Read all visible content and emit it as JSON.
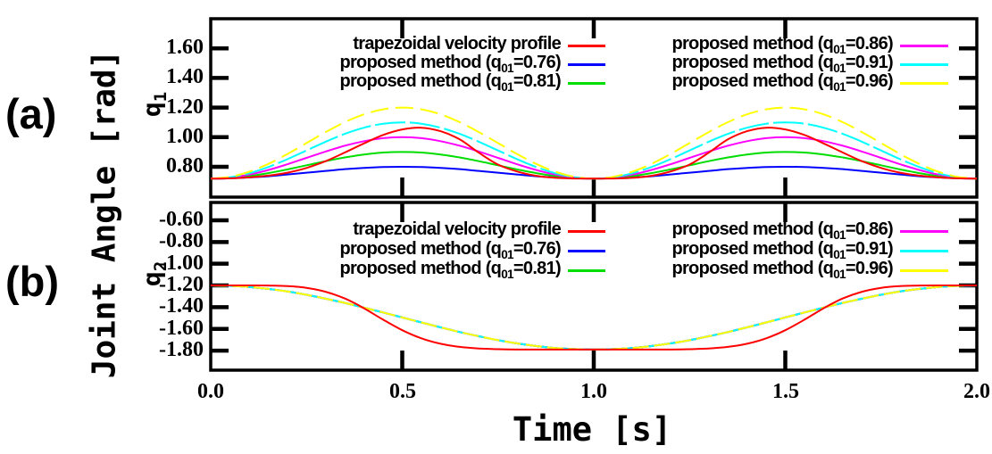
{
  "figure": {
    "panel_a_tag": "(a)",
    "panel_b_tag": "(b)",
    "shared_ylabel": "Joint Angle [rad]",
    "xlabel": "Time [s]",
    "background": "#ffffff",
    "x_axis": {
      "range": [
        0.0,
        2.0
      ],
      "ticks": [
        {
          "v": 0.0,
          "label": "0.0"
        },
        {
          "v": 0.5,
          "label": "0.5"
        },
        {
          "v": 1.0,
          "label": "1.0"
        },
        {
          "v": 1.5,
          "label": "1.5"
        },
        {
          "v": 2.0,
          "label": "2.0"
        }
      ]
    }
  },
  "legend": {
    "position": "top-inside, two columns, repeated in both panels",
    "columns": [
      [
        {
          "label": "trapezoidal velocity profile",
          "color": "#ff0000"
        },
        {
          "label": "proposed method (q_{01}=0.76)",
          "color": "#0000ff"
        },
        {
          "label": "proposed method (q_{01}=0.81)",
          "color": "#00dd00"
        }
      ],
      [
        {
          "label": "proposed method (q_{01}=0.86)",
          "color": "#ff00ff"
        },
        {
          "label": "proposed method (q_{01}=0.91)",
          "color": "#00ffff"
        },
        {
          "label": "proposed method (q_{01}=0.96)",
          "color": "#ffff00"
        }
      ]
    ]
  },
  "chart_data": [
    {
      "type": "line",
      "panel": "a",
      "y_axis_label": "q_{1}",
      "x_range": [
        0.0,
        2.0
      ],
      "y_range": [
        0.595,
        1.8
      ],
      "grid": false,
      "t0": 0.0,
      "dt": 0.05,
      "y_ticks": [
        {
          "v": 1.6,
          "label": "1.60"
        },
        {
          "v": 1.4,
          "label": "1.40"
        },
        {
          "v": 1.2,
          "label": "1.20"
        },
        {
          "v": 1.0,
          "label": "1.00"
        },
        {
          "v": 0.8,
          "label": "0.80"
        }
      ],
      "series": [
        {
          "name": "proposed method (q_{01}=0.76)",
          "q01": 0.76,
          "color": "#0000ff",
          "dash": null,
          "q": [
            0.72,
            0.722,
            0.728,
            0.736,
            0.748,
            0.76,
            0.772,
            0.784,
            0.792,
            0.798,
            0.8,
            0.798,
            0.792,
            0.784,
            0.772,
            0.76,
            0.748,
            0.736,
            0.728,
            0.722,
            0.72,
            0.722,
            0.728,
            0.736,
            0.748,
            0.76,
            0.772,
            0.784,
            0.792,
            0.798,
            0.8,
            0.798,
            0.792,
            0.784,
            0.772,
            0.76,
            0.748,
            0.736,
            0.728,
            0.722,
            0.72
          ]
        },
        {
          "name": "proposed method (q_{01}=0.81)",
          "q01": 0.81,
          "color": "#00dd00",
          "dash": null,
          "q": [
            0.72,
            0.724,
            0.737,
            0.757,
            0.782,
            0.81,
            0.838,
            0.863,
            0.883,
            0.896,
            0.9,
            0.896,
            0.883,
            0.863,
            0.838,
            0.81,
            0.782,
            0.757,
            0.737,
            0.724,
            0.72,
            0.724,
            0.737,
            0.757,
            0.782,
            0.81,
            0.838,
            0.863,
            0.883,
            0.896,
            0.9,
            0.896,
            0.883,
            0.863,
            0.838,
            0.81,
            0.782,
            0.757,
            0.737,
            0.724,
            0.72
          ]
        },
        {
          "name": "proposed method (q_{01}=0.86)",
          "q01": 0.86,
          "color": "#ff00ff",
          "dash": null,
          "q": [
            0.72,
            0.727,
            0.747,
            0.778,
            0.817,
            0.86,
            0.903,
            0.942,
            0.973,
            0.993,
            1.0,
            0.993,
            0.973,
            0.942,
            0.903,
            0.86,
            0.817,
            0.778,
            0.747,
            0.727,
            0.72,
            0.727,
            0.747,
            0.778,
            0.817,
            0.86,
            0.903,
            0.942,
            0.973,
            0.993,
            1.0,
            0.993,
            0.973,
            0.942,
            0.903,
            0.86,
            0.817,
            0.778,
            0.747,
            0.727,
            0.72
          ]
        },
        {
          "name": "proposed method (q_{01}=0.91)",
          "q01": 0.91,
          "color": "#00ffff",
          "dash": [
            34,
            5
          ],
          "q": [
            0.72,
            0.729,
            0.756,
            0.798,
            0.851,
            0.91,
            0.969,
            1.022,
            1.064,
            1.091,
            1.1,
            1.091,
            1.064,
            1.022,
            0.969,
            0.91,
            0.851,
            0.798,
            0.756,
            0.729,
            0.72,
            0.729,
            0.756,
            0.798,
            0.851,
            0.91,
            0.969,
            1.022,
            1.064,
            1.091,
            1.1,
            1.091,
            1.064,
            1.022,
            0.969,
            0.91,
            0.851,
            0.798,
            0.756,
            0.729,
            0.72
          ]
        },
        {
          "name": "proposed method (q_{01}=0.96)",
          "q01": 0.96,
          "color": "#ffff00",
          "dash": [
            20,
            8
          ],
          "q": [
            0.72,
            0.732,
            0.766,
            0.819,
            0.886,
            0.96,
            1.034,
            1.101,
            1.154,
            1.188,
            1.2,
            1.188,
            1.154,
            1.101,
            1.034,
            0.96,
            0.886,
            0.819,
            0.766,
            0.732,
            0.72,
            0.732,
            0.766,
            0.819,
            0.886,
            0.96,
            1.034,
            1.101,
            1.154,
            1.188,
            1.2,
            1.188,
            1.154,
            1.101,
            1.034,
            0.96,
            0.886,
            0.819,
            0.766,
            0.732,
            0.72
          ]
        },
        {
          "name": "trapezoidal velocity profile",
          "color": "#ff0000",
          "dash": null,
          "q": [
            0.72,
            0.722,
            0.728,
            0.74,
            0.76,
            0.792,
            0.838,
            0.896,
            0.958,
            1.015,
            1.052,
            1.064,
            1.04,
            0.985,
            0.895,
            0.815,
            0.768,
            0.739,
            0.725,
            0.721,
            0.72,
            0.721,
            0.725,
            0.739,
            0.768,
            0.815,
            0.895,
            0.985,
            1.04,
            1.064,
            1.052,
            1.015,
            0.958,
            0.896,
            0.838,
            0.792,
            0.76,
            0.74,
            0.728,
            0.722,
            0.72
          ]
        }
      ]
    },
    {
      "type": "line",
      "panel": "b",
      "y_axis_label": "q_{2}",
      "x_range": [
        0.0,
        2.0
      ],
      "y_range": [
        -1.98,
        -0.436
      ],
      "grid": false,
      "t0": 0.0,
      "dt": 0.05,
      "note": "all five proposed-method trajectories coincide in this panel",
      "shared_q": [
        -1.2,
        -1.204,
        -1.214,
        -1.232,
        -1.256,
        -1.286,
        -1.322,
        -1.361,
        -1.404,
        -1.449,
        -1.495,
        -1.541,
        -1.586,
        -1.629,
        -1.668,
        -1.704,
        -1.734,
        -1.758,
        -1.776,
        -1.786,
        -1.79,
        -1.786,
        -1.776,
        -1.758,
        -1.734,
        -1.704,
        -1.668,
        -1.629,
        -1.586,
        -1.541,
        -1.495,
        -1.449,
        -1.404,
        -1.361,
        -1.322,
        -1.286,
        -1.256,
        -1.232,
        -1.214,
        -1.204,
        -1.2
      ],
      "y_ticks": [
        {
          "v": -0.6,
          "label": "-0.60"
        },
        {
          "v": -0.8,
          "label": "-0.80"
        },
        {
          "v": -1.0,
          "label": "-1.00"
        },
        {
          "v": -1.2,
          "label": "-1.20"
        },
        {
          "v": -1.4,
          "label": "-1.40"
        },
        {
          "v": -1.6,
          "label": "-1.60"
        },
        {
          "v": -1.8,
          "label": "-1.80"
        }
      ],
      "series": [
        {
          "name": "proposed method (q_{01}=0.76)",
          "q01": 0.76,
          "color": "#0000ff",
          "dash": null,
          "q": "shared"
        },
        {
          "name": "proposed method (q_{01}=0.81)",
          "q01": 0.81,
          "color": "#00dd00",
          "dash": null,
          "q": "shared"
        },
        {
          "name": "proposed method (q_{01}=0.86)",
          "q01": 0.86,
          "color": "#ff00ff",
          "dash": null,
          "q": "shared"
        },
        {
          "name": "proposed method (q_{01}=0.91)",
          "q01": 0.91,
          "color": "#00ffff",
          "dash": null,
          "q": "shared"
        },
        {
          "name": "proposed method (q_{01}=0.96)",
          "q01": 0.96,
          "color": "#ffff00",
          "dash": [
            18,
            6
          ],
          "q": "shared"
        },
        {
          "name": "trapezoidal velocity profile",
          "color": "#ff0000",
          "dash": null,
          "q": [
            -1.2,
            -1.2,
            -1.2,
            -1.201,
            -1.206,
            -1.222,
            -1.258,
            -1.32,
            -1.41,
            -1.515,
            -1.612,
            -1.687,
            -1.737,
            -1.766,
            -1.781,
            -1.787,
            -1.79,
            -1.79,
            -1.79,
            -1.79,
            -1.79,
            -1.79,
            -1.79,
            -1.79,
            -1.79,
            -1.787,
            -1.781,
            -1.766,
            -1.737,
            -1.687,
            -1.612,
            -1.515,
            -1.41,
            -1.32,
            -1.258,
            -1.222,
            -1.206,
            -1.201,
            -1.2,
            -1.2,
            -1.2
          ]
        }
      ]
    }
  ]
}
